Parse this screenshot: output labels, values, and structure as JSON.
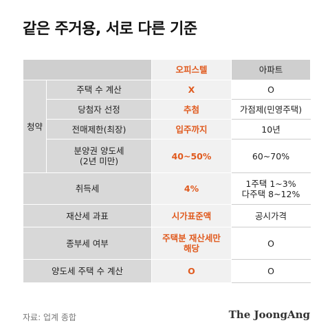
{
  "title": "같은 주거용, 서로 다른 기준",
  "headers": {
    "officetel": "오피스텔",
    "apartment": "아파트"
  },
  "subscription_group": "청약",
  "rows": [
    {
      "label": "주택 수 계산",
      "officetel": "X",
      "apartment": "O"
    },
    {
      "label": "당첨자 선정",
      "officetel": "추첨",
      "apartment": "가점제(민영주택)"
    },
    {
      "label": "전매제한(최장)",
      "officetel": "입주까지",
      "apartment": "10년"
    },
    {
      "label_line1": "분양권 양도세",
      "label_line2": "(2년 미만)",
      "officetel": "40~50%",
      "apartment": "60~70%"
    },
    {
      "label": "취득세",
      "officetel": "4%",
      "apartment_line1": "1주택 1~3%",
      "apartment_line2": "다주택 8~12%"
    },
    {
      "label": "재산세 과표",
      "officetel": "시가표준액",
      "apartment": "공시가격"
    },
    {
      "label": "종부세 여부",
      "officetel_line1": "주택분 재산세만",
      "officetel_line2": "해당",
      "apartment": "O"
    },
    {
      "label": "양도세 주택 수 계산",
      "officetel": "O",
      "apartment": "O"
    }
  ],
  "source": "자료: 업계 종합",
  "brand": "The JoongAng"
}
